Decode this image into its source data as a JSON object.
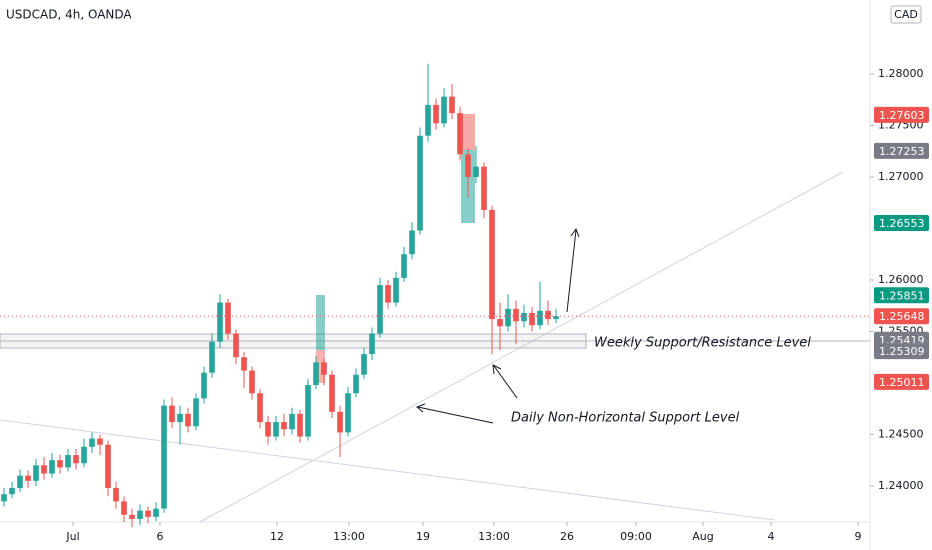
{
  "chart_data": {
    "type": "candlestick",
    "title": "USDCAD, 4h, OANDA",
    "currency": "CAD",
    "up_color": "#26a69a",
    "down_color": "#ef5350",
    "xlim": [
      0,
      108.75
    ],
    "ylim": [
      1.2365,
      1.28718
    ],
    "yticks": [
      {
        "value": 1.24,
        "label": "1.24000"
      },
      {
        "value": 1.245,
        "label": "1.24500"
      },
      {
        "value": 1.255,
        "label": "1.25500"
      },
      {
        "value": 1.26,
        "label": "1.26000"
      },
      {
        "value": 1.27,
        "label": "1.27000"
      },
      {
        "value": 1.275,
        "label": "1.27500"
      },
      {
        "value": 1.28,
        "label": "1.28000"
      }
    ],
    "xticks": [
      {
        "value": 9.125,
        "label": "Jul"
      },
      {
        "value": 20,
        "label": "6"
      },
      {
        "value": 34.625,
        "label": "12"
      },
      {
        "value": 43.625,
        "label": "13:00"
      },
      {
        "value": 52.875,
        "label": "19"
      },
      {
        "value": 61.75,
        "label": "13:00"
      },
      {
        "value": 70.875,
        "label": "26"
      },
      {
        "value": 79.5,
        "label": "09:00"
      },
      {
        "value": 87.875,
        "label": "Aug"
      },
      {
        "value": 96.375,
        "label": "4"
      },
      {
        "value": 107.25,
        "label": "9"
      }
    ],
    "open": [
      1.2385,
      1.2392,
      1.2398,
      1.241,
      1.2405,
      1.242,
      1.2412,
      1.2425,
      1.2418,
      1.243,
      1.2422,
      1.2438,
      1.2446,
      1.244,
      1.2398,
      1.2385,
      1.2372,
      1.2368,
      1.2376,
      1.237,
      1.2378,
      1.2478,
      1.2462,
      1.247,
      1.2458,
      1.2485,
      1.251,
      1.254,
      1.2578,
      1.2548,
      1.2525,
      1.2512,
      1.249,
      1.2462,
      1.2448,
      1.2462,
      1.2455,
      1.247,
      1.2448,
      1.2498,
      1.252,
      1.2508,
      1.2472,
      1.2452,
      1.249,
      1.2508,
      1.2528,
      1.2548,
      1.2595,
      1.2578,
      1.2602,
      1.2625,
      1.2648,
      1.274,
      1.277,
      1.2752,
      1.2778,
      1.2762,
      1.2722,
      1.27,
      1.271,
      1.2668,
      1.2562,
      1.2555,
      1.2572,
      1.256,
      1.2568,
      1.2556,
      1.257,
      1.2562
    ],
    "high": [
      1.2398,
      1.2404,
      1.2416,
      1.2415,
      1.2426,
      1.2428,
      1.2432,
      1.243,
      1.2436,
      1.2436,
      1.2446,
      1.2452,
      1.245,
      1.2444,
      1.2404,
      1.239,
      1.2378,
      1.2382,
      1.238,
      1.2384,
      1.2484,
      1.2486,
      1.2478,
      1.2476,
      1.249,
      1.2516,
      1.2548,
      1.2586,
      1.2582,
      1.2552,
      1.253,
      1.2516,
      1.2494,
      1.2468,
      1.2468,
      1.247,
      1.2476,
      1.2474,
      1.2504,
      1.2526,
      1.2524,
      1.2512,
      1.2478,
      1.2496,
      1.2514,
      1.2534,
      1.2554,
      1.2602,
      1.26,
      1.2608,
      1.2632,
      1.2656,
      1.2748,
      1.281,
      1.2776,
      1.2786,
      1.279,
      1.2768,
      1.2728,
      1.273,
      1.2714,
      1.2672,
      1.2578,
      1.2586,
      1.258,
      1.2576,
      1.2574,
      1.2598,
      1.258,
      1.2572
    ],
    "low": [
      1.238,
      1.2388,
      1.2394,
      1.2398,
      1.24,
      1.2406,
      1.2408,
      1.2412,
      1.2414,
      1.2416,
      1.2418,
      1.2432,
      1.243,
      1.239,
      1.2378,
      1.2365,
      1.236,
      1.2362,
      1.2364,
      1.2366,
      1.2374,
      1.2456,
      1.244,
      1.2452,
      1.2454,
      1.248,
      1.2505,
      1.2534,
      1.2542,
      1.2518,
      1.2495,
      1.2484,
      1.2456,
      1.244,
      1.2444,
      1.2448,
      1.245,
      1.2442,
      1.2444,
      1.2494,
      1.2498,
      1.2466,
      1.2428,
      1.2448,
      1.2486,
      1.2504,
      1.2522,
      1.2544,
      1.2572,
      1.2574,
      1.2598,
      1.262,
      1.2644,
      1.2734,
      1.2746,
      1.2748,
      1.2756,
      1.2716,
      1.268,
      1.2694,
      1.266,
      1.2528,
      1.2532,
      1.255,
      1.2538,
      1.2554,
      1.255,
      1.2552,
      1.2556,
      1.2558
    ],
    "close": [
      1.2392,
      1.2398,
      1.241,
      1.2405,
      1.242,
      1.2412,
      1.2425,
      1.2418,
      1.243,
      1.2422,
      1.2438,
      1.2446,
      1.244,
      1.2398,
      1.2385,
      1.2372,
      1.2368,
      1.2376,
      1.237,
      1.2378,
      1.2478,
      1.2462,
      1.247,
      1.2458,
      1.2485,
      1.251,
      1.254,
      1.2578,
      1.2548,
      1.2525,
      1.2512,
      1.249,
      1.2462,
      1.2448,
      1.2462,
      1.2455,
      1.247,
      1.2448,
      1.2498,
      1.252,
      1.2508,
      1.2472,
      1.2452,
      1.249,
      1.2508,
      1.2528,
      1.2548,
      1.2595,
      1.2578,
      1.2602,
      1.2625,
      1.2648,
      1.274,
      1.277,
      1.2752,
      1.2778,
      1.2762,
      1.2722,
      1.27,
      1.271,
      1.2668,
      1.2562,
      1.2555,
      1.2572,
      1.256,
      1.2568,
      1.2556,
      1.257,
      1.2562,
      1.25648
    ],
    "price_labels": [
      {
        "value": 1.27603,
        "color": "#ef5350"
      },
      {
        "value": 1.27253,
        "color": "#787b86"
      },
      {
        "value": 1.26553,
        "color": "#089981"
      },
      {
        "value": 1.25851,
        "color": "#089981"
      },
      {
        "value": 1.25648,
        "color": "#ef5350"
      },
      {
        "value": 1.25419,
        "color": "#787b86"
      },
      {
        "value": 1.25309,
        "color": "#787b86"
      },
      {
        "value": 1.25011,
        "color": "#ef5350"
      }
    ],
    "annotations": [
      "Weekly Support/Resistance Level",
      "Daily Non-Horizontal Support Level"
    ]
  }
}
